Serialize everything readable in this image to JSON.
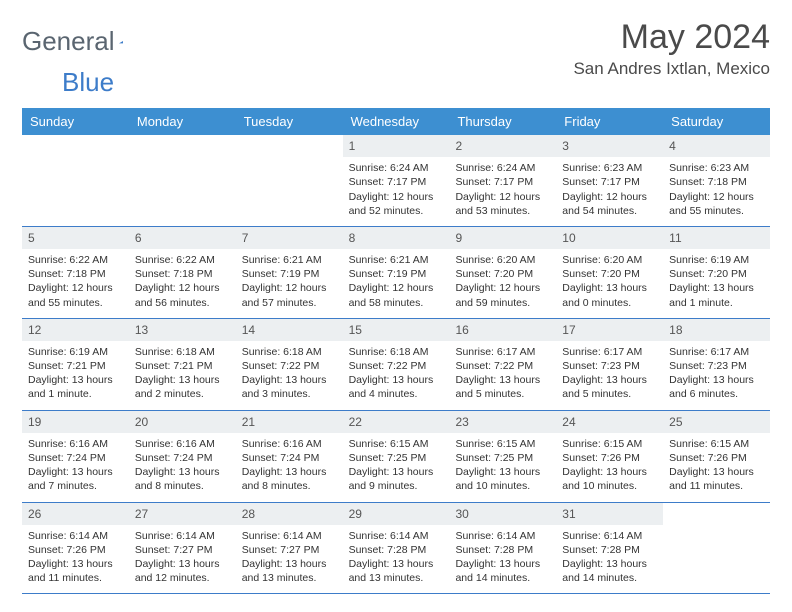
{
  "logo": {
    "text_a": "General",
    "text_b": "Blue"
  },
  "title": "May 2024",
  "location": "San Andres Ixtlan, Mexico",
  "colors": {
    "header_bg": "#3d8fd1",
    "header_text": "#ffffff",
    "rule": "#3d7cc9",
    "daynum_bg": "#eceff1",
    "text": "#333333",
    "logo_gray": "#5a6570",
    "logo_blue": "#3d7cc9"
  },
  "day_names": [
    "Sunday",
    "Monday",
    "Tuesday",
    "Wednesday",
    "Thursday",
    "Friday",
    "Saturday"
  ],
  "weeks": [
    [
      {
        "n": "",
        "empty": true
      },
      {
        "n": "",
        "empty": true
      },
      {
        "n": "",
        "empty": true
      },
      {
        "n": "1",
        "sr": "6:24 AM",
        "ss": "7:17 PM",
        "dl": "12 hours and 52 minutes."
      },
      {
        "n": "2",
        "sr": "6:24 AM",
        "ss": "7:17 PM",
        "dl": "12 hours and 53 minutes."
      },
      {
        "n": "3",
        "sr": "6:23 AM",
        "ss": "7:17 PM",
        "dl": "12 hours and 54 minutes."
      },
      {
        "n": "4",
        "sr": "6:23 AM",
        "ss": "7:18 PM",
        "dl": "12 hours and 55 minutes."
      }
    ],
    [
      {
        "n": "5",
        "sr": "6:22 AM",
        "ss": "7:18 PM",
        "dl": "12 hours and 55 minutes."
      },
      {
        "n": "6",
        "sr": "6:22 AM",
        "ss": "7:18 PM",
        "dl": "12 hours and 56 minutes."
      },
      {
        "n": "7",
        "sr": "6:21 AM",
        "ss": "7:19 PM",
        "dl": "12 hours and 57 minutes."
      },
      {
        "n": "8",
        "sr": "6:21 AM",
        "ss": "7:19 PM",
        "dl": "12 hours and 58 minutes."
      },
      {
        "n": "9",
        "sr": "6:20 AM",
        "ss": "7:20 PM",
        "dl": "12 hours and 59 minutes."
      },
      {
        "n": "10",
        "sr": "6:20 AM",
        "ss": "7:20 PM",
        "dl": "13 hours and 0 minutes."
      },
      {
        "n": "11",
        "sr": "6:19 AM",
        "ss": "7:20 PM",
        "dl": "13 hours and 1 minute."
      }
    ],
    [
      {
        "n": "12",
        "sr": "6:19 AM",
        "ss": "7:21 PM",
        "dl": "13 hours and 1 minute."
      },
      {
        "n": "13",
        "sr": "6:18 AM",
        "ss": "7:21 PM",
        "dl": "13 hours and 2 minutes."
      },
      {
        "n": "14",
        "sr": "6:18 AM",
        "ss": "7:22 PM",
        "dl": "13 hours and 3 minutes."
      },
      {
        "n": "15",
        "sr": "6:18 AM",
        "ss": "7:22 PM",
        "dl": "13 hours and 4 minutes."
      },
      {
        "n": "16",
        "sr": "6:17 AM",
        "ss": "7:22 PM",
        "dl": "13 hours and 5 minutes."
      },
      {
        "n": "17",
        "sr": "6:17 AM",
        "ss": "7:23 PM",
        "dl": "13 hours and 5 minutes."
      },
      {
        "n": "18",
        "sr": "6:17 AM",
        "ss": "7:23 PM",
        "dl": "13 hours and 6 minutes."
      }
    ],
    [
      {
        "n": "19",
        "sr": "6:16 AM",
        "ss": "7:24 PM",
        "dl": "13 hours and 7 minutes."
      },
      {
        "n": "20",
        "sr": "6:16 AM",
        "ss": "7:24 PM",
        "dl": "13 hours and 8 minutes."
      },
      {
        "n": "21",
        "sr": "6:16 AM",
        "ss": "7:24 PM",
        "dl": "13 hours and 8 minutes."
      },
      {
        "n": "22",
        "sr": "6:15 AM",
        "ss": "7:25 PM",
        "dl": "13 hours and 9 minutes."
      },
      {
        "n": "23",
        "sr": "6:15 AM",
        "ss": "7:25 PM",
        "dl": "13 hours and 10 minutes."
      },
      {
        "n": "24",
        "sr": "6:15 AM",
        "ss": "7:26 PM",
        "dl": "13 hours and 10 minutes."
      },
      {
        "n": "25",
        "sr": "6:15 AM",
        "ss": "7:26 PM",
        "dl": "13 hours and 11 minutes."
      }
    ],
    [
      {
        "n": "26",
        "sr": "6:14 AM",
        "ss": "7:26 PM",
        "dl": "13 hours and 11 minutes."
      },
      {
        "n": "27",
        "sr": "6:14 AM",
        "ss": "7:27 PM",
        "dl": "13 hours and 12 minutes."
      },
      {
        "n": "28",
        "sr": "6:14 AM",
        "ss": "7:27 PM",
        "dl": "13 hours and 13 minutes."
      },
      {
        "n": "29",
        "sr": "6:14 AM",
        "ss": "7:28 PM",
        "dl": "13 hours and 13 minutes."
      },
      {
        "n": "30",
        "sr": "6:14 AM",
        "ss": "7:28 PM",
        "dl": "13 hours and 14 minutes."
      },
      {
        "n": "31",
        "sr": "6:14 AM",
        "ss": "7:28 PM",
        "dl": "13 hours and 14 minutes."
      },
      {
        "n": "",
        "empty": true
      }
    ]
  ],
  "labels": {
    "sunrise": "Sunrise: ",
    "sunset": "Sunset: ",
    "daylight": "Daylight: "
  }
}
